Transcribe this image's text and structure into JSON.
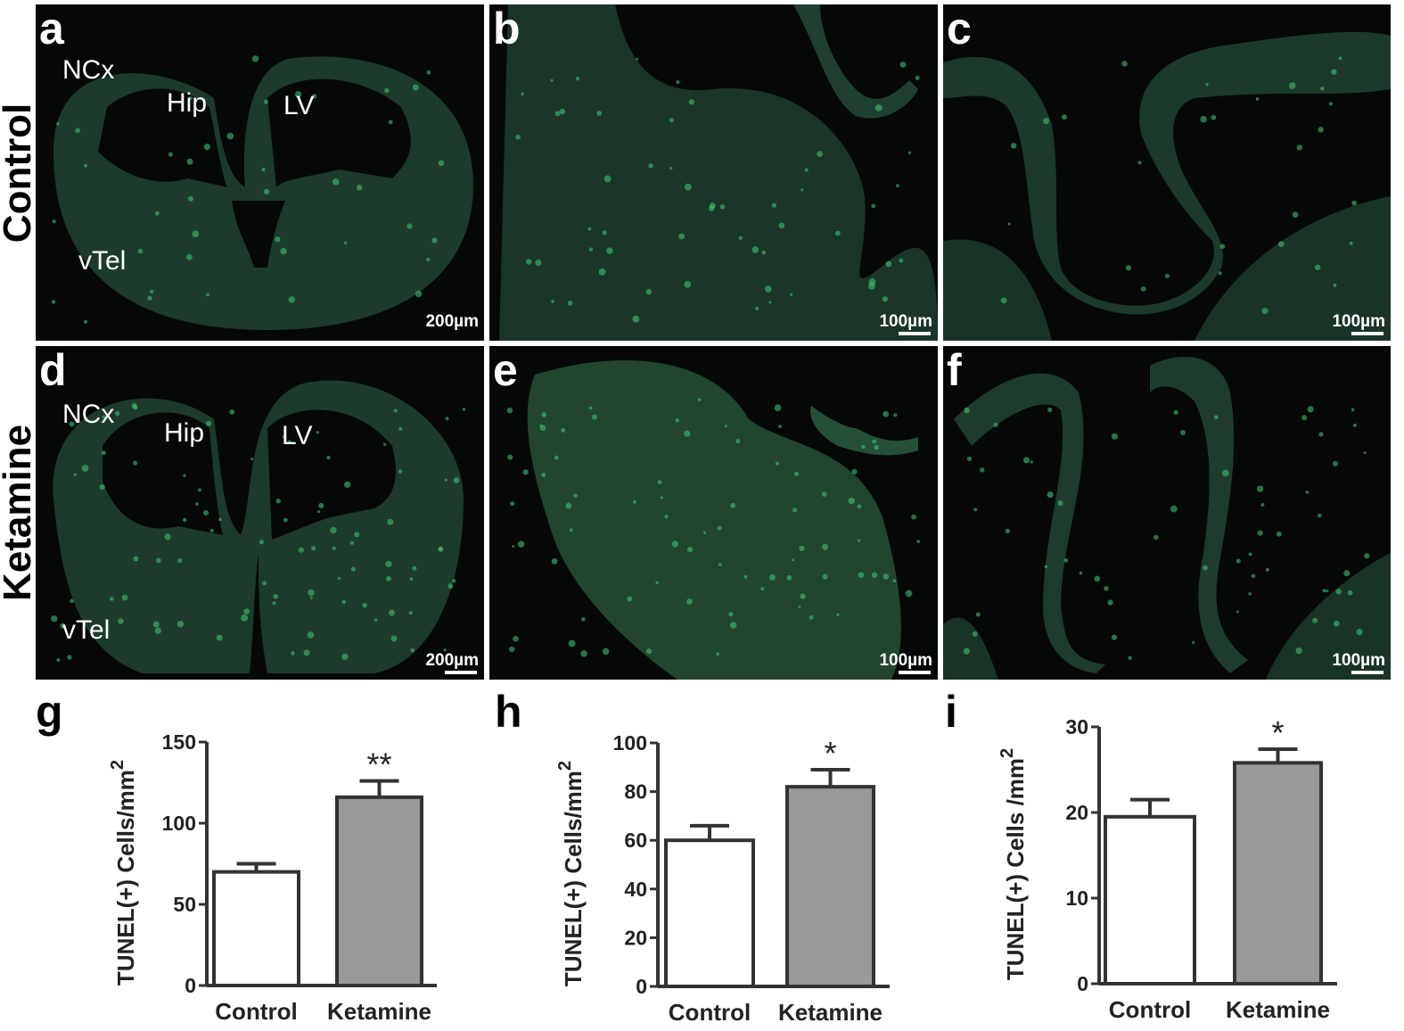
{
  "row_labels": [
    "Control",
    "Ketamine"
  ],
  "panels": [
    {
      "letter": "a",
      "labels": [
        "NCx",
        "Hip",
        "LV",
        "vTel"
      ],
      "scale_bar": "200µm"
    },
    {
      "letter": "b",
      "scale_bar": "100µm"
    },
    {
      "letter": "c",
      "scale_bar": "100µm"
    },
    {
      "letter": "d",
      "labels": [
        "NCx",
        "Hip",
        "LV",
        "vTel"
      ],
      "scale_bar": "200µm"
    },
    {
      "letter": "e",
      "scale_bar": "100µm"
    },
    {
      "letter": "f",
      "scale_bar": "100µm"
    }
  ],
  "chart_data": [
    {
      "type": "bar",
      "panel_label": "g",
      "ylabel": "TUNEL(+) Cells/mm",
      "ylabel_sup": "2",
      "categories": [
        "Control",
        "Ketamine"
      ],
      "values": [
        70,
        116
      ],
      "errors": [
        5,
        10
      ],
      "colors": [
        "#ffffff",
        "#999999"
      ],
      "significance": "**",
      "ylim": [
        0,
        150
      ],
      "yticks": [
        0,
        50,
        100,
        150
      ]
    },
    {
      "type": "bar",
      "panel_label": "h",
      "ylabel": "TUNEL(+) Cells/mm",
      "ylabel_sup": "2",
      "categories": [
        "Control",
        "Ketamine"
      ],
      "values": [
        60,
        82
      ],
      "errors": [
        6,
        7
      ],
      "colors": [
        "#ffffff",
        "#999999"
      ],
      "significance": "*",
      "ylim": [
        0,
        100
      ],
      "yticks": [
        0,
        20,
        40,
        60,
        80,
        100
      ]
    },
    {
      "type": "bar",
      "panel_label": "i",
      "ylabel": "TUNEL(+) Cells /mm",
      "ylabel_sup": "2",
      "categories": [
        "Control",
        "Ketamine"
      ],
      "values": [
        19.5,
        25.8
      ],
      "errors": [
        2,
        1.6
      ],
      "colors": [
        "#ffffff",
        "#999999"
      ],
      "significance": "*",
      "ylim": [
        0,
        30
      ],
      "yticks": [
        0,
        10,
        20,
        30
      ]
    }
  ]
}
